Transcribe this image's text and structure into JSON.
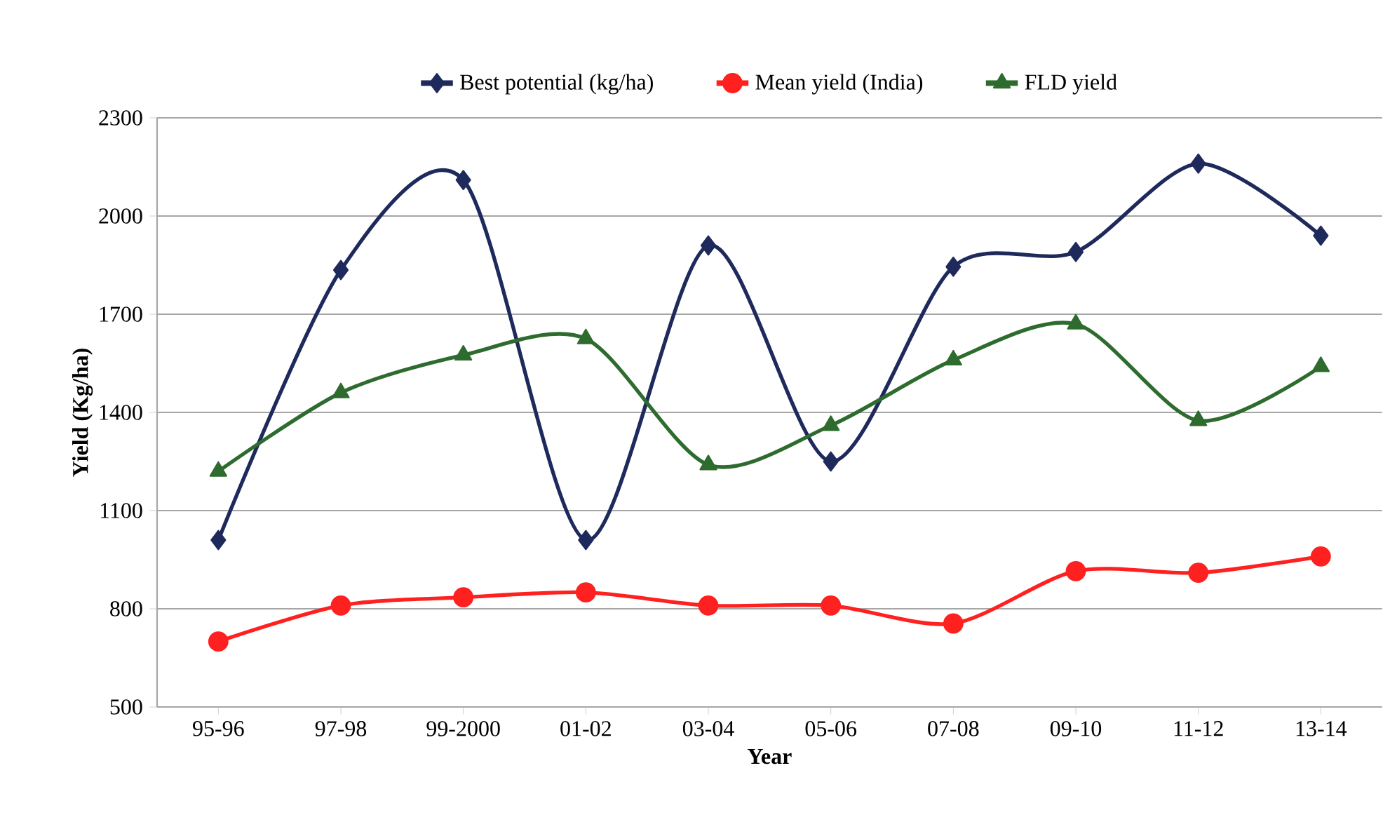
{
  "chart_data": {
    "type": "line",
    "xlabel": "Year",
    "ylabel": "Yield (Kg/ha)",
    "categories": [
      "95-96",
      "97-98",
      "99-2000",
      "01-02",
      "03-04",
      "05-06",
      "07-08",
      "09-10",
      "11-12",
      "13-14"
    ],
    "series": [
      {
        "name": "Best potential (kg/ha)",
        "color": "#1f2a5c",
        "marker": "diamond",
        "values": [
          1010,
          1835,
          2110,
          1010,
          1910,
          1250,
          1845,
          1890,
          2160,
          1940
        ]
      },
      {
        "name": "Mean yield (India)",
        "color": "#ff2020",
        "marker": "circle",
        "values": [
          700,
          810,
          835,
          850,
          810,
          810,
          755,
          915,
          910,
          960
        ]
      },
      {
        "name": "FLD yield",
        "color": "#2e6b2e",
        "marker": "triangle",
        "values": [
          1220,
          1460,
          1575,
          1625,
          1240,
          1360,
          1560,
          1670,
          1375,
          1540
        ]
      }
    ],
    "ylim": [
      500,
      2300
    ],
    "yticks": [
      500,
      800,
      1100,
      1400,
      1700,
      2000,
      2300
    ],
    "grid": "y",
    "legend": "top",
    "line_style": "solid"
  }
}
